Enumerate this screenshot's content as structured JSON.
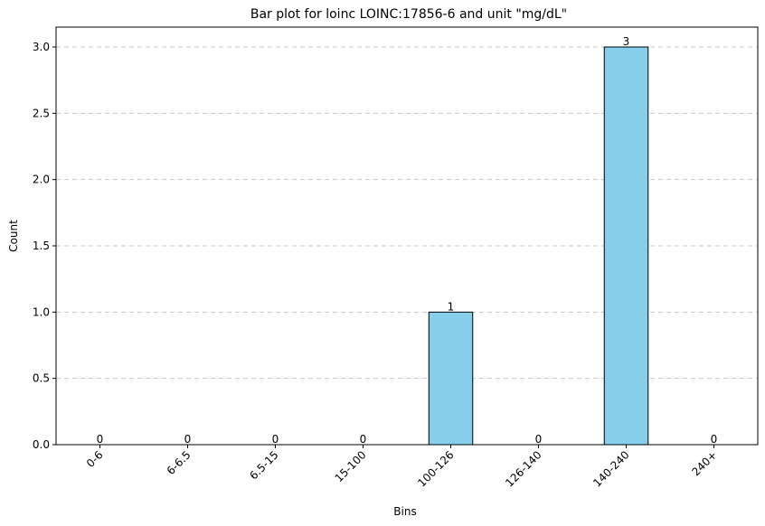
{
  "chart_data": {
    "type": "bar",
    "title": "Bar plot for loinc LOINC:17856-6 and unit \"mg/dL\"",
    "xlabel": "Bins",
    "ylabel": "Count",
    "categories": [
      "0-6",
      "6-6.5",
      "6.5-15",
      "15-100",
      "100-126",
      "126-140",
      "140-240",
      "240+"
    ],
    "values": [
      0,
      0,
      0,
      0,
      1,
      0,
      3,
      0
    ],
    "value_labels": [
      "0",
      "0",
      "0",
      "0",
      "1",
      "0",
      "3",
      "0"
    ],
    "ylim": [
      0,
      3.15
    ],
    "yticks": [
      0,
      0.5,
      1,
      1.5,
      2,
      2.5,
      3
    ],
    "ytick_labels": [
      "0.0",
      "0.5",
      "1.0",
      "1.5",
      "2.0",
      "2.5",
      "3.0"
    ],
    "grid": "y-dashed",
    "bar_color": "#87CEEB",
    "bar_edge_color": "#000000",
    "grid_color": "#c8c8c8"
  }
}
